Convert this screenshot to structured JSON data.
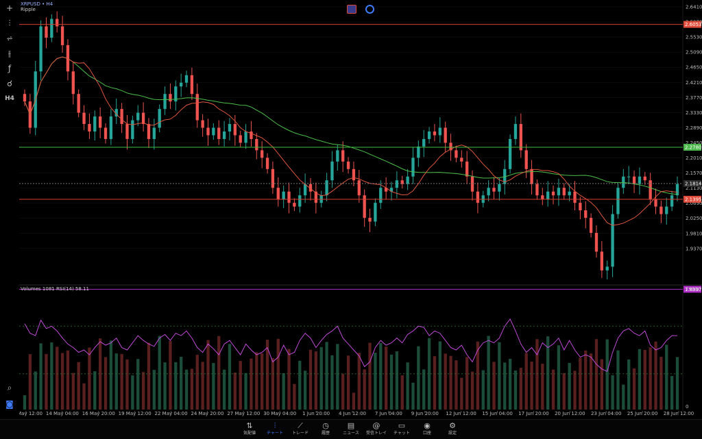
{
  "header": {
    "symbol": "XRPUSD",
    "timeframe_sep": " • ",
    "timeframe": "H4",
    "description": "Ripple"
  },
  "toolbar": {
    "items": [
      {
        "name": "crosshair-icon",
        "glyph": "+"
      },
      {
        "name": "candles-icon",
        "glyph": "⫶"
      },
      {
        "name": "indicators-icon",
        "glyph": "⩫"
      },
      {
        "name": "objects-icon",
        "glyph": "⫲"
      },
      {
        "name": "function-icon",
        "glyph": "ƒ"
      },
      {
        "name": "shapes-icon",
        "glyph": "☌"
      },
      {
        "name": "period-icon",
        "glyph": "H4"
      }
    ],
    "bottom_items": [
      {
        "name": "search-icon",
        "glyph": "⌕"
      },
      {
        "name": "account-icon",
        "glyph": "◙"
      }
    ]
  },
  "price_axis": {
    "labels": [
      "2.6410",
      "2.5970",
      "2.5530",
      "2.5090",
      "2.4650",
      "2.4210",
      "2.3770",
      "2.3330",
      "2.2890",
      "2.2450",
      "2.2010",
      "2.1570",
      "2.1130",
      "2.0690",
      "2.0250",
      "1.9810",
      "1.9370"
    ],
    "badges": [
      {
        "value": "2.6053",
        "color": "#e04a3a"
      },
      {
        "value": "2.2780",
        "color": "#4cb84c"
      },
      {
        "value": "2.1814",
        "color": "#2a2a2a"
      },
      {
        "value": "2.1395",
        "color": "#e04a3a"
      },
      {
        "value": "1.8997",
        "color": "#b02cc7"
      }
    ]
  },
  "indicator": {
    "label": "Volumes 1081 RSI(14) 58.11",
    "axis_top": "79230",
    "axis_bottom": "0"
  },
  "time_axis": {
    "labels": [
      "11 May 12:00",
      "14 May 04:00",
      "16 May 20:00",
      "19 May 12:00",
      "22 May 04:00",
      "24 May 20:00",
      "27 May 12:00",
      "30 May 04:00",
      "1 Jun 20:00",
      "4 Jun 12:00",
      "7 Jun 04:00",
      "9 Jun 20:00",
      "12 Jun 12:00",
      "15 Jun 04:00",
      "17 Jun 20:00",
      "20 Jun 12:00",
      "23 Jun 04:00",
      "25 Jun 20:00",
      "28 Jun 12:00"
    ]
  },
  "tabs": [
    {
      "name": "tab-quotes",
      "icon": "⇅",
      "label": "気配値",
      "active": false
    },
    {
      "name": "tab-chart",
      "icon": "⫶",
      "label": "チャート",
      "active": true
    },
    {
      "name": "tab-trade",
      "icon": "⟋",
      "label": "トレード",
      "active": false
    },
    {
      "name": "tab-history",
      "icon": "◷",
      "label": "履歴",
      "active": false
    },
    {
      "name": "tab-news",
      "icon": "▤",
      "label": "ニュース",
      "active": false
    },
    {
      "name": "tab-mailbox",
      "icon": "@",
      "label": "受信トレイ",
      "active": false
    },
    {
      "name": "tab-chat",
      "icon": "▭",
      "label": "チャット",
      "active": false
    },
    {
      "name": "tab-account",
      "icon": "◉",
      "label": "口座",
      "active": false
    },
    {
      "name": "tab-settings",
      "icon": "⚙",
      "label": "設定",
      "active": false
    }
  ],
  "colors": {
    "bull": "#26a69a",
    "bear": "#ef5350",
    "ma_fast": "#e0553f",
    "ma_slow": "#4cc04c",
    "rsi": "#c04ad8",
    "grid": "#151515",
    "level_red": "#d9402e",
    "level_green": "#3fbf3f",
    "level_purple": "#b02cc7"
  },
  "chart_data": {
    "type": "candlestick",
    "y_range": [
      1.915,
      2.663
    ],
    "levels": [
      2.6053,
      2.278,
      2.1814,
      2.1395,
      1.8997
    ],
    "close_path": [
      2.4,
      2.33,
      2.48,
      2.6,
      2.57,
      2.62,
      2.6,
      2.55,
      2.48,
      2.42,
      2.37,
      2.34,
      2.32,
      2.36,
      2.33,
      2.3,
      2.36,
      2.38,
      2.34,
      2.3,
      2.35,
      2.37,
      2.34,
      2.3,
      2.33,
      2.38,
      2.42,
      2.4,
      2.44,
      2.45,
      2.47,
      2.42,
      2.35,
      2.33,
      2.31,
      2.33,
      2.3,
      2.32,
      2.34,
      2.31,
      2.29,
      2.32,
      2.3,
      2.27,
      2.25,
      2.22,
      2.17,
      2.14,
      2.16,
      2.13,
      2.12,
      2.15,
      2.18,
      2.16,
      2.13,
      2.15,
      2.19,
      2.24,
      2.27,
      2.24,
      2.22,
      2.19,
      2.15,
      2.09,
      2.08,
      2.13,
      2.17,
      2.16,
      2.17,
      2.19,
      2.18,
      2.2,
      2.25,
      2.28,
      2.3,
      2.32,
      2.31,
      2.33,
      2.29,
      2.27,
      2.25,
      2.24,
      2.2,
      2.16,
      2.13,
      2.15,
      2.17,
      2.16,
      2.18,
      2.22,
      2.3,
      2.34,
      2.27,
      2.22,
      2.18,
      2.15,
      2.14,
      2.16,
      2.15,
      2.17,
      2.15,
      2.16,
      2.13,
      2.11,
      2.09,
      2.05,
      2.0,
      1.95,
      1.96,
      2.1,
      2.17,
      2.2,
      2.2,
      2.18,
      2.2,
      2.19,
      2.14,
      2.12,
      2.1,
      2.12,
      2.15,
      2.18
    ],
    "rsi_path": [
      72,
      64,
      62,
      75,
      68,
      70,
      66,
      60,
      55,
      52,
      48,
      50,
      46,
      52,
      57,
      54,
      56,
      60,
      52,
      50,
      56,
      62,
      58,
      55,
      53,
      60,
      63,
      58,
      64,
      62,
      66,
      60,
      52,
      48,
      55,
      51,
      46,
      55,
      58,
      52,
      46,
      55,
      50,
      46,
      48,
      52,
      40,
      44,
      54,
      46,
      48,
      58,
      64,
      60,
      52,
      58,
      63,
      66,
      70,
      60,
      55,
      50,
      45,
      36,
      40,
      52,
      58,
      54,
      56,
      60,
      56,
      63,
      66,
      70,
      69,
      62,
      66,
      64,
      58,
      52,
      50,
      54,
      46,
      40,
      50,
      56,
      58,
      56,
      60,
      70,
      76,
      66,
      55,
      48,
      52,
      46,
      56,
      52,
      55,
      60,
      50,
      58,
      50,
      44,
      46,
      44,
      38,
      34,
      32,
      48,
      60,
      66,
      68,
      64,
      62,
      66,
      54,
      50,
      52,
      58,
      62,
      62
    ],
    "rsi_levels": [
      70,
      30
    ],
    "volume_axis": [
      0,
      79230
    ]
  }
}
